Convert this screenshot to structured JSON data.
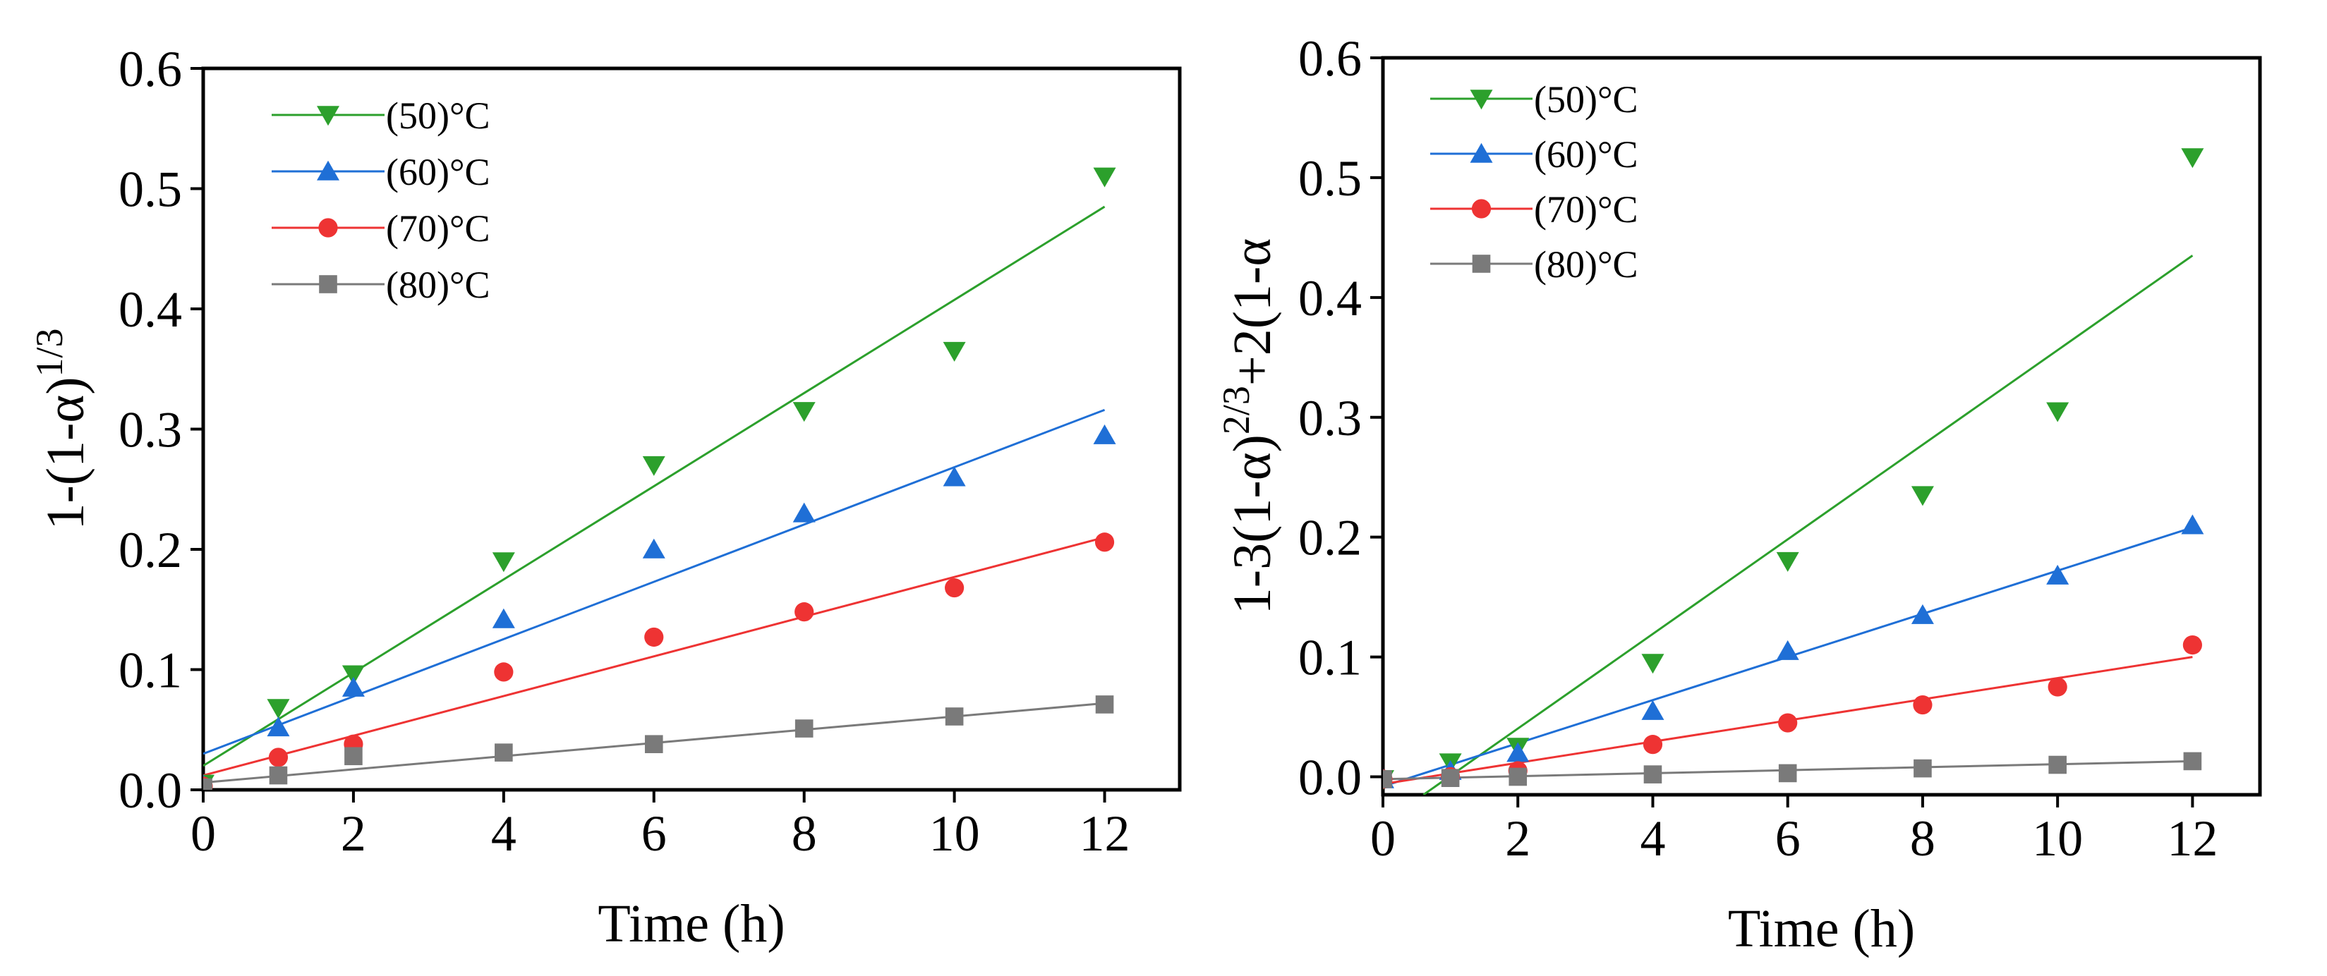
{
  "chart_data": [
    {
      "type": "scatter",
      "title": "",
      "xlabel": "Time (h)",
      "ylabel_main": "1-(1-α)",
      "ylabel_sup": "1/3",
      "xlim": [
        0,
        13
      ],
      "ylim": [
        0,
        0.6
      ],
      "xticks": [
        0,
        2,
        4,
        6,
        8,
        10,
        12
      ],
      "yticks": [
        0.0,
        0.1,
        0.2,
        0.3,
        0.4,
        0.5,
        0.6
      ],
      "xtick_labels": [
        "0",
        "2",
        "4",
        "6",
        "8",
        "10",
        "12"
      ],
      "ytick_labels": [
        "0.0",
        "0.1",
        "0.2",
        "0.3",
        "0.4",
        "0.5",
        "0.6"
      ],
      "legend_position": "top-left",
      "grid": false,
      "x": [
        0,
        1,
        2,
        4,
        6,
        8,
        10,
        12
      ],
      "series": [
        {
          "name": "(50)°C",
          "color": "#2ca02c",
          "marker": "triangle-down",
          "values": [
            0.005,
            0.068,
            0.096,
            0.19,
            0.27,
            0.315,
            0.365,
            0.51
          ],
          "fit": {
            "x0": 0,
            "y0": 0.02,
            "x1": 12,
            "y1": 0.485
          }
        },
        {
          "name": "(60)°C",
          "color": "#1f6fd6",
          "marker": "triangle-up",
          "values": [
            0.004,
            0.052,
            0.085,
            0.142,
            0.2,
            0.23,
            0.26,
            0.295
          ],
          "fit": {
            "x0": 0,
            "y0": 0.03,
            "x1": 12,
            "y1": 0.316
          }
        },
        {
          "name": "(70)°C",
          "color": "#ee3333",
          "marker": "circle",
          "values": [
            0.003,
            0.027,
            0.038,
            0.098,
            0.127,
            0.148,
            0.168,
            0.206
          ],
          "fit": {
            "x0": 0,
            "y0": 0.012,
            "x1": 12,
            "y1": 0.21
          }
        },
        {
          "name": "(80)°C",
          "color": "#7a7a7a",
          "marker": "square",
          "values": [
            0.002,
            0.012,
            0.028,
            0.031,
            0.038,
            0.051,
            0.061,
            0.071
          ],
          "fit": {
            "x0": 0,
            "y0": 0.006,
            "x1": 12,
            "y1": 0.072
          }
        }
      ]
    },
    {
      "type": "scatter",
      "title": "",
      "xlabel": "Time (h)",
      "ylabel_part1": "1-3(1-α)",
      "ylabel_sup": "2/3",
      "ylabel_part2": "+2(1-α",
      "xlim": [
        0,
        13
      ],
      "ylim": [
        -0.015,
        0.6
      ],
      "xticks": [
        0,
        2,
        4,
        6,
        8,
        10,
        12
      ],
      "yticks": [
        0.0,
        0.1,
        0.2,
        0.3,
        0.4,
        0.5,
        0.6
      ],
      "xtick_labels": [
        "0",
        "2",
        "4",
        "6",
        "8",
        "10",
        "12"
      ],
      "ytick_labels": [
        "0.0",
        "0.1",
        "0.2",
        "0.3",
        "0.4",
        "0.5",
        "0.6"
      ],
      "legend_position": "top-left",
      "grid": false,
      "x": [
        0,
        1,
        2,
        4,
        6,
        8,
        10,
        12
      ],
      "series": [
        {
          "name": "(50)°C",
          "color": "#2ca02c",
          "marker": "triangle-down",
          "values": [
            -0.002,
            0.012,
            0.025,
            0.095,
            0.18,
            0.235,
            0.305,
            0.517
          ],
          "fit": {
            "x0": 0.6,
            "y0": -0.015,
            "x1": 12,
            "y1": 0.435
          }
        },
        {
          "name": "(60)°C",
          "color": "#1f6fd6",
          "marker": "triangle-up",
          "values": [
            -0.002,
            0.005,
            0.02,
            0.055,
            0.105,
            0.135,
            0.168,
            0.21
          ],
          "fit": {
            "x0": 0,
            "y0": -0.008,
            "x1": 12,
            "y1": 0.208
          }
        },
        {
          "name": "(70)°C",
          "color": "#ee3333",
          "marker": "circle",
          "values": [
            -0.002,
            0.0,
            0.005,
            0.027,
            0.045,
            0.06,
            0.075,
            0.11
          ],
          "fit": {
            "x0": 0,
            "y0": -0.006,
            "x1": 12,
            "y1": 0.1
          }
        },
        {
          "name": "(80)°C",
          "color": "#7a7a7a",
          "marker": "square",
          "values": [
            -0.002,
            -0.001,
            0.0,
            0.002,
            0.003,
            0.007,
            0.01,
            0.013
          ],
          "fit": {
            "x0": 0,
            "y0": -0.002,
            "x1": 12,
            "y1": 0.013
          }
        }
      ]
    }
  ]
}
